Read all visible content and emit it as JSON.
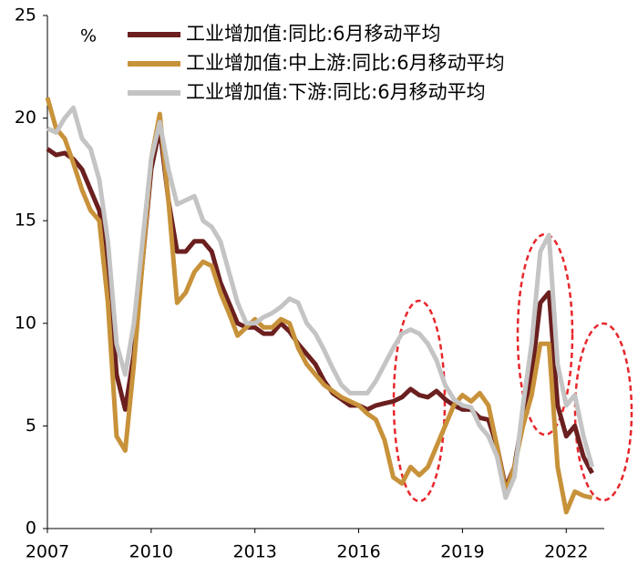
{
  "chart_data": {
    "type": "line",
    "y_unit_label": "%",
    "x": [
      2007.0,
      2007.25,
      2007.5,
      2007.75,
      2008.0,
      2008.25,
      2008.5,
      2008.75,
      2009.0,
      2009.25,
      2009.5,
      2009.75,
      2010.0,
      2010.25,
      2010.5,
      2010.75,
      2011.0,
      2011.25,
      2011.5,
      2011.75,
      2012.0,
      2012.25,
      2012.5,
      2012.75,
      2013.0,
      2013.25,
      2013.5,
      2013.75,
      2014.0,
      2014.25,
      2014.5,
      2014.75,
      2015.0,
      2015.25,
      2015.5,
      2015.75,
      2016.0,
      2016.25,
      2016.5,
      2016.75,
      2017.0,
      2017.25,
      2017.5,
      2017.75,
      2018.0,
      2018.25,
      2018.5,
      2018.75,
      2019.0,
      2019.25,
      2019.5,
      2019.75,
      2020.0,
      2020.25,
      2020.5,
      2020.75,
      2021.0,
      2021.25,
      2021.5,
      2021.75,
      2022.0,
      2022.25,
      2022.5,
      2022.75
    ],
    "series": [
      {
        "name": "工业增加值:同比:6月移动平均",
        "color": "#6b1f1f",
        "values": [
          18.5,
          18.2,
          18.3,
          18.0,
          17.5,
          16.5,
          15.5,
          13,
          7.5,
          5.8,
          8.5,
          13,
          17.5,
          19.5,
          16,
          13.5,
          13.5,
          14,
          14,
          13.5,
          12,
          11,
          10,
          9.8,
          9.8,
          9.5,
          9.5,
          10,
          9.6,
          9,
          8.5,
          8,
          7.2,
          6.6,
          6.3,
          6.0,
          6.0,
          5.8,
          6.0,
          6.1,
          6.2,
          6.4,
          6.8,
          6.5,
          6.4,
          6.7,
          6.3,
          6.0,
          5.8,
          5.8,
          5.4,
          5.3,
          4.0,
          2.0,
          3.0,
          5.5,
          7.5,
          11.0,
          11.5,
          6.0,
          4.5,
          5.0,
          3.5,
          2.7
        ]
      },
      {
        "name": "工业增加值:中上游:同比:6月移动平均",
        "color": "#c8923a",
        "values": [
          21,
          19.5,
          19,
          17.8,
          16.5,
          15.5,
          15,
          11,
          4.5,
          3.8,
          8,
          13,
          18,
          20.2,
          16,
          11,
          11.5,
          12.5,
          13,
          12.8,
          11.5,
          10.5,
          9.4,
          9.8,
          10.2,
          9.8,
          9.8,
          10.2,
          10,
          8.8,
          8.0,
          7.5,
          7.0,
          6.7,
          6.4,
          6.2,
          6.0,
          5.6,
          5.3,
          4.3,
          2.5,
          2.2,
          3.0,
          2.6,
          3.0,
          4.0,
          5.0,
          6.0,
          6.5,
          6.2,
          6.6,
          6.0,
          4.0,
          1.8,
          3.0,
          5.0,
          6.5,
          9.0,
          9.0,
          3.0,
          0.8,
          1.8,
          1.6,
          1.5
        ]
      },
      {
        "name": "工业增加值:下游:同比:6月移动平均",
        "color": "#c4c4c4",
        "values": [
          19.5,
          19.3,
          20,
          20.5,
          19,
          18.5,
          17,
          14,
          9,
          7.5,
          10,
          14,
          18,
          19.8,
          17.5,
          15.8,
          16,
          16.2,
          15,
          14.7,
          14,
          12.5,
          11,
          10,
          10,
          10.3,
          10.5,
          10.8,
          11.2,
          11,
          10,
          9.5,
          8.7,
          7.8,
          7,
          6.6,
          6.6,
          6.6,
          7.2,
          8.0,
          8.8,
          9.5,
          9.7,
          9.5,
          9.0,
          8.2,
          7.0,
          6.3,
          6.0,
          5.9,
          5.0,
          4.5,
          3.5,
          1.5,
          2.5,
          6.0,
          9.0,
          13.5,
          14.3,
          8.0,
          6.0,
          6.5,
          4.5,
          3.0
        ]
      }
    ],
    "xlim": [
      2007,
      2023.1
    ],
    "xticks": [
      2007,
      2010,
      2013,
      2016,
      2019,
      2022
    ],
    "ylim": [
      0,
      25
    ],
    "yticks": [
      0,
      5,
      10,
      15,
      20,
      25
    ],
    "grid": false
  }
}
